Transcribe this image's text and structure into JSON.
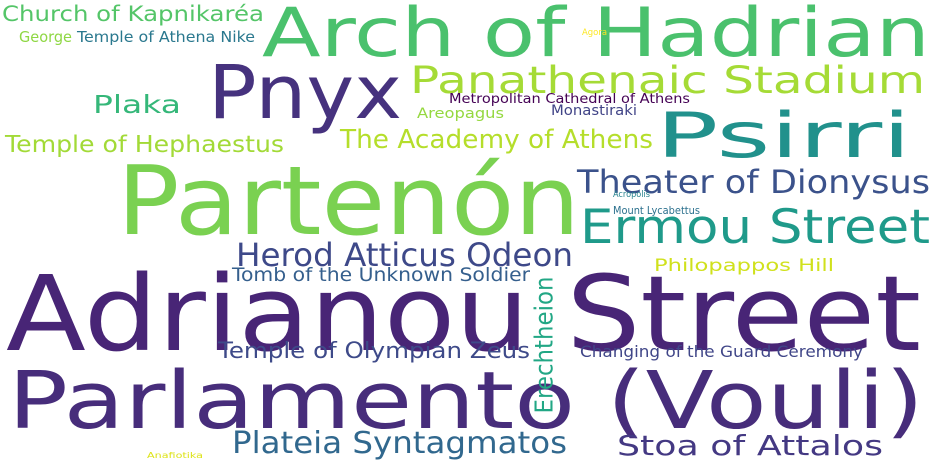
{
  "word_cloud": {
    "words": [
      {
        "text": "Adrianou Street",
        "color": "#482576"
      },
      {
        "text": "Parlamento (Vouli)",
        "color": "#472d7b"
      },
      {
        "text": "Partenón",
        "color": "#7ad151"
      },
      {
        "text": "Arch of Hadrian",
        "color": "#4ac16d"
      },
      {
        "text": "Pnyx",
        "color": "#46327e"
      },
      {
        "text": "Psirri",
        "color": "#21918c"
      },
      {
        "text": "Panathenaic Stadium",
        "color": "#a5db36"
      },
      {
        "text": "Ermou Street",
        "color": "#1f9a8a"
      },
      {
        "text": "Theater of Dionysus",
        "color": "#3b528b"
      },
      {
        "text": "Plateia Syntagmatos",
        "color": "#31688e"
      },
      {
        "text": "Stoa of Attalos",
        "color": "#443983"
      },
      {
        "text": "Herod Atticus Odeon",
        "color": "#3e4989"
      },
      {
        "text": "Plaka",
        "color": "#35b779"
      },
      {
        "text": "The Academy of Athens",
        "color": "#b5de2b"
      },
      {
        "text": "Temple of Hephaestus",
        "color": "#a2da37"
      },
      {
        "text": "Church of Kapnikaréa",
        "color": "#54c568"
      },
      {
        "text": "Erechtheion",
        "color": "#22a785"
      },
      {
        "text": "Temple of Olympian Zeus",
        "color": "#3e4a89"
      },
      {
        "text": "Philopappos Hill",
        "color": "#d0e11c"
      },
      {
        "text": "Tomb of the Unknown Soldier",
        "color": "#355f8d"
      },
      {
        "text": "Changing of the Guard Ceremony",
        "color": "#404688"
      },
      {
        "text": "Temple of Athena Nike",
        "color": "#2a788e"
      },
      {
        "text": "George",
        "color": "#8fd744"
      },
      {
        "text": "Metropolitan Cathedral of Athens",
        "color": "#440154"
      },
      {
        "text": "Areopagus",
        "color": "#95d840"
      },
      {
        "text": "Monastiraki",
        "color": "#414487"
      },
      {
        "text": "Mount Lycabettus",
        "color": "#2c718e"
      },
      {
        "text": "Agora",
        "color": "#fde725"
      },
      {
        "text": "Acropolis",
        "color": "#26828e"
      },
      {
        "text": "Anafiotika",
        "color": "#dde318"
      }
    ]
  }
}
